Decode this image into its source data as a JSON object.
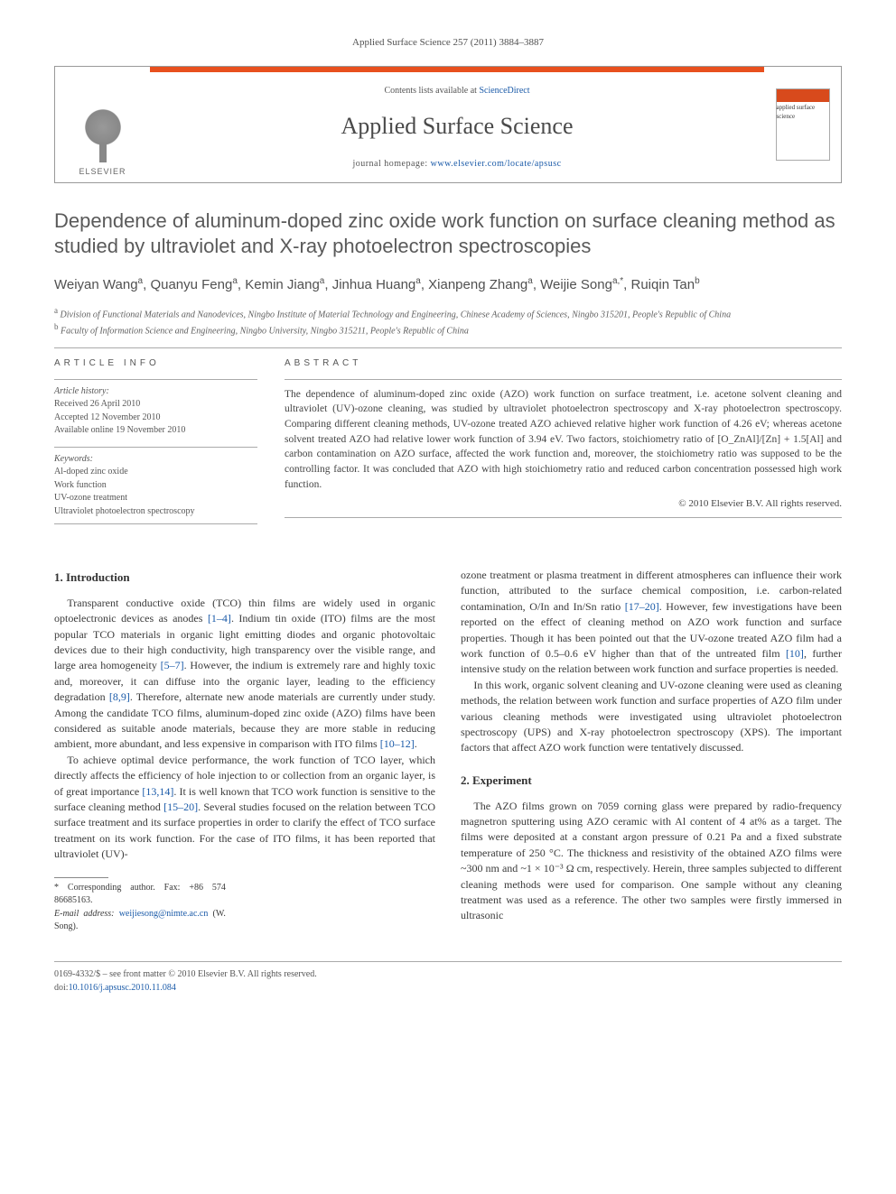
{
  "header": {
    "citation": "Applied Surface Science 257 (2011) 3884–3887",
    "contents_prefix": "Contents lists available at ",
    "contents_link": "ScienceDirect",
    "journal_name": "Applied Surface Science",
    "homepage_prefix": "journal homepage: ",
    "homepage_url": "www.elsevier.com/locate/apsusc",
    "publisher_logo_text": "ELSEVIER",
    "cover_text": "applied surface science"
  },
  "article": {
    "title": "Dependence of aluminum-doped zinc oxide work function on surface cleaning method as studied by ultraviolet and X-ray photoelectron spectroscopies",
    "authors_html": "Weiyan Wang<sup>a</sup>, Quanyu Feng<sup>a</sup>, Kemin Jiang<sup>a</sup>, Jinhua Huang<sup>a</sup>, Xianpeng Zhang<sup>a</sup>, Weijie Song<sup>a,*</sup>, Ruiqin Tan<sup>b</sup>",
    "affiliations": {
      "a": "Division of Functional Materials and Nanodevices, Ningbo Institute of Material Technology and Engineering, Chinese Academy of Sciences, Ningbo 315201, People's Republic of China",
      "b": "Faculty of Information Science and Engineering, Ningbo University, Ningbo 315211, People's Republic of China"
    }
  },
  "info": {
    "label": "ARTICLE INFO",
    "history_header": "Article history:",
    "received": "Received 26 April 2010",
    "accepted": "Accepted 12 November 2010",
    "online": "Available online 19 November 2010",
    "keywords_header": "Keywords:",
    "keywords": [
      "Al-doped zinc oxide",
      "Work function",
      "UV-ozone treatment",
      "Ultraviolet photoelectron spectroscopy"
    ]
  },
  "abstract": {
    "label": "ABSTRACT",
    "text": "The dependence of aluminum-doped zinc oxide (AZO) work function on surface treatment, i.e. acetone solvent cleaning and ultraviolet (UV)-ozone cleaning, was studied by ultraviolet photoelectron spectroscopy and X-ray photoelectron spectroscopy. Comparing different cleaning methods, UV-ozone treated AZO achieved relative higher work function of 4.26 eV; whereas acetone solvent treated AZO had relative lower work function of 3.94 eV. Two factors, stoichiometry ratio of [O_ZnAl]/[Zn] + 1.5[Al] and carbon contamination on AZO surface, affected the work function and, moreover, the stoichiometry ratio was supposed to be the controlling factor. It was concluded that AZO with high stoichiometry ratio and reduced carbon concentration possessed high work function.",
    "copyright": "© 2010 Elsevier B.V. All rights reserved."
  },
  "sections": {
    "intro_heading": "1. Introduction",
    "intro_p1": "Transparent conductive oxide (TCO) thin films are widely used in organic optoelectronic devices as anodes [1–4]. Indium tin oxide (ITO) films are the most popular TCO materials in organic light emitting diodes and organic photovoltaic devices due to their high conductivity, high transparency over the visible range, and large area homogeneity [5–7]. However, the indium is extremely rare and highly toxic and, moreover, it can diffuse into the organic layer, leading to the efficiency degradation [8,9]. Therefore, alternate new anode materials are currently under study. Among the candidate TCO films, aluminum-doped zinc oxide (AZO) films have been considered as suitable anode materials, because they are more stable in reducing ambient, more abundant, and less expensive in comparison with ITO films [10–12].",
    "intro_p2": "To achieve optimal device performance, the work function of TCO layer, which directly affects the efficiency of hole injection to or collection from an organic layer, is of great importance [13,14]. It is well known that TCO work function is sensitive to the surface cleaning method [15–20]. Several studies focused on the relation between TCO surface treatment and its surface properties in order to clarify the effect of TCO surface treatment on its work function. For the case of ITO films, it has been reported that ultraviolet (UV)-",
    "intro_p2b": "ozone treatment or plasma treatment in different atmospheres can influence their work function, attributed to the surface chemical composition, i.e. carbon-related contamination, O/In and In/Sn ratio [17–20]. However, few investigations have been reported on the effect of cleaning method on AZO work function and surface properties. Though it has been pointed out that the UV-ozone treated AZO film had a work function of 0.5–0.6 eV higher than that of the untreated film [10], further intensive study on the relation between work function and surface properties is needed.",
    "intro_p3": "In this work, organic solvent cleaning and UV-ozone cleaning were used as cleaning methods, the relation between work function and surface properties of AZO film under various cleaning methods were investigated using ultraviolet photoelectron spectroscopy (UPS) and X-ray photoelectron spectroscopy (XPS). The important factors that affect AZO work function were tentatively discussed.",
    "exp_heading": "2. Experiment",
    "exp_p1": "The AZO films grown on 7059 corning glass were prepared by radio-frequency magnetron sputtering using AZO ceramic with Al content of 4 at% as a target. The films were deposited at a constant argon pressure of 0.21 Pa and a fixed substrate temperature of 250 °C. The thickness and resistivity of the obtained AZO films were ~300 nm and ~1 × 10⁻³ Ω cm, respectively. Herein, three samples subjected to different cleaning methods were used for comparison. One sample without any cleaning treatment was used as a reference. The other two samples were firstly immersed in ultrasonic"
  },
  "corr": {
    "line1": "* Corresponding author. Fax: +86 574 86685163.",
    "email_label": "E-mail address: ",
    "email": "weijiesong@nimte.ac.cn",
    "email_suffix": " (W. Song)."
  },
  "footer": {
    "line1": "0169-4332/$ – see front matter © 2010 Elsevier B.V. All rights reserved.",
    "doi_prefix": "doi:",
    "doi": "10.1016/j.apsusc.2010.11.084"
  },
  "colors": {
    "accent_red": "#e8501e",
    "link_blue": "#1a5aa8",
    "text_gray": "#3a3a3a"
  }
}
